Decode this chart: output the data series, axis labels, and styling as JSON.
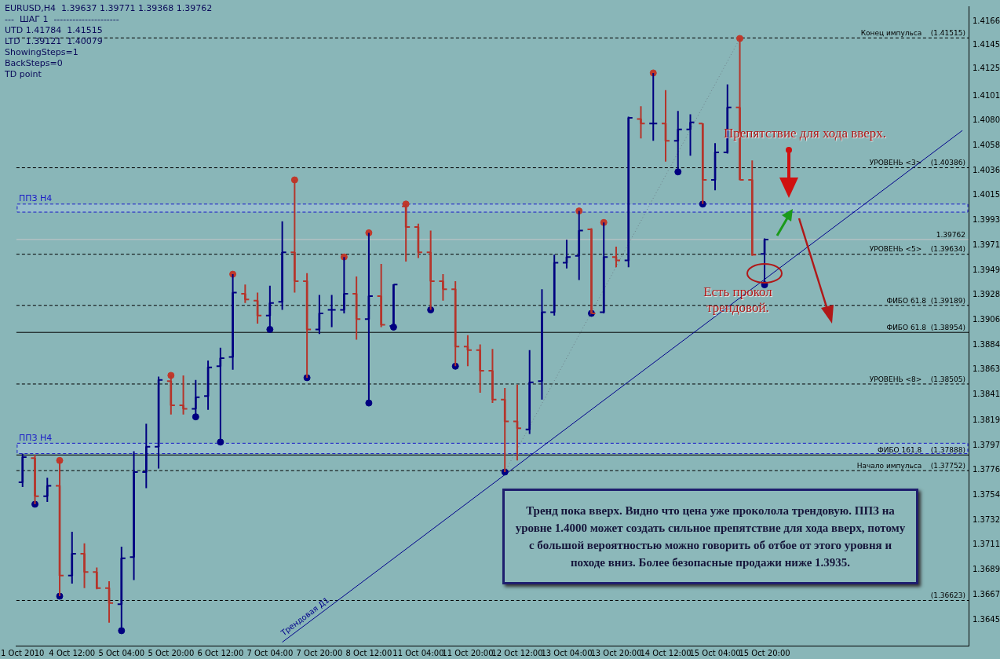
{
  "chart_data": {
    "type": "candlestick",
    "title": "EURUSD,H4  1.39637 1.39771 1.39368 1.39762",
    "categories": [
      "1 Oct 2010",
      null,
      null,
      null,
      "4 Oct 12:00",
      null,
      null,
      null,
      "5 Oct 04:00",
      null,
      null,
      null,
      "5 Oct 20:00",
      null,
      null,
      null,
      "6 Oct 12:00",
      null,
      null,
      null,
      "7 Oct 04:00",
      null,
      null,
      null,
      "7 Oct 20:00",
      null,
      null,
      null,
      "8 Oct 12:00",
      null,
      null,
      null,
      "11 Oct 04:00",
      null,
      null,
      null,
      "11 Oct 20:00",
      null,
      null,
      null,
      "12 Oct 12:00",
      null,
      null,
      null,
      "13 Oct 04:00",
      null,
      null,
      null,
      "13 Oct 20:00",
      null,
      null,
      null,
      "14 Oct 12:00",
      null,
      null,
      null,
      "15 Oct 04:00",
      null,
      null,
      null,
      "15 Oct 20:00",
      null,
      null,
      null,
      null,
      null,
      null,
      null,
      null,
      null,
      null,
      null,
      null,
      null,
      null,
      null,
      null
    ],
    "ohlc": [
      [
        1.3765,
        1.379,
        1.3761,
        1.3787
      ],
      [
        1.3786,
        1.3789,
        1.3746,
        1.3753
      ],
      [
        1.3753,
        1.3769,
        1.3748,
        1.3762
      ],
      [
        1.3762,
        1.3784,
        1.3666,
        1.3684
      ],
      [
        1.3684,
        1.3722,
        1.3677,
        1.3703
      ],
      [
        1.3703,
        1.3712,
        1.3673,
        1.3687
      ],
      [
        1.3687,
        1.3691,
        1.3672,
        1.3673
      ],
      [
        1.3673,
        1.3679,
        1.3643,
        1.366
      ],
      [
        1.3659,
        1.3709,
        1.3636,
        1.3699
      ],
      [
        1.37,
        1.3792,
        1.368,
        1.3774
      ],
      [
        1.3774,
        1.3816,
        1.376,
        1.3796
      ],
      [
        1.3796,
        1.3857,
        1.3777,
        1.3854
      ],
      [
        1.3853,
        1.3858,
        1.3824,
        1.3832
      ],
      [
        1.3832,
        1.3858,
        1.3824,
        1.3829
      ],
      [
        1.3829,
        1.3854,
        1.3822,
        1.3839
      ],
      [
        1.384,
        1.3871,
        1.3828,
        1.3865
      ],
      [
        1.3866,
        1.3882,
        1.38,
        1.3873
      ],
      [
        1.3874,
        1.3946,
        1.3863,
        1.393
      ],
      [
        1.3929,
        1.3937,
        1.3921,
        1.3924
      ],
      [
        1.3923,
        1.393,
        1.3903,
        1.391
      ],
      [
        1.391,
        1.3936,
        1.3898,
        1.3921
      ],
      [
        1.3922,
        1.3992,
        1.3915,
        1.3965
      ],
      [
        1.3965,
        1.4028,
        1.393,
        1.394
      ],
      [
        1.394,
        1.3947,
        1.3856,
        1.3898
      ],
      [
        1.3898,
        1.3928,
        1.3894,
        1.3912
      ],
      [
        1.3915,
        1.3928,
        1.39,
        1.3915
      ],
      [
        1.3915,
        1.3961,
        1.3912,
        1.3929
      ],
      [
        1.3929,
        1.3944,
        1.3889,
        1.3907
      ],
      [
        1.3907,
        1.3982,
        1.3834,
        1.3927
      ],
      [
        1.3927,
        1.3955,
        1.39,
        1.3902
      ],
      [
        1.3901,
        1.3937,
        1.39,
        1.3937
      ],
      [
        1.4005,
        1.4007,
        1.3957,
        1.3987
      ],
      [
        1.3987,
        1.399,
        1.396,
        1.3965
      ],
      [
        1.3965,
        1.3984,
        1.3915,
        1.394
      ],
      [
        1.394,
        1.3946,
        1.3923,
        1.3933
      ],
      [
        1.3933,
        1.394,
        1.3866,
        1.3883
      ],
      [
        1.3883,
        1.3893,
        1.3866,
        1.388
      ],
      [
        1.388,
        1.3885,
        1.3843,
        1.3862
      ],
      [
        1.3862,
        1.3881,
        1.3834,
        1.3837
      ],
      [
        1.3837,
        1.3847,
        1.3774,
        1.3818
      ],
      [
        1.3818,
        1.385,
        1.3784,
        1.3812
      ],
      [
        1.3811,
        1.388,
        1.3807,
        1.3852
      ],
      [
        1.3853,
        1.3933,
        1.3837,
        1.3913
      ],
      [
        1.3913,
        1.3963,
        1.391,
        1.3956
      ],
      [
        1.3956,
        1.3976,
        1.3951,
        1.3961
      ],
      [
        1.3962,
        1.4001,
        1.3941,
        1.3984
      ],
      [
        1.3985,
        1.3986,
        1.3912,
        1.3912
      ],
      [
        1.3913,
        1.3991,
        1.3912,
        1.3961
      ],
      [
        1.3961,
        1.397,
        1.3952,
        1.3958
      ],
      [
        1.3958,
        1.4083,
        1.3952,
        1.4082
      ],
      [
        1.4081,
        1.4092,
        1.4064,
        1.4077
      ],
      [
        1.4077,
        1.4121,
        1.4062,
        1.4077
      ],
      [
        1.4077,
        1.4106,
        1.4044,
        1.4062
      ],
      [
        1.4062,
        1.4088,
        1.4035,
        1.4072
      ],
      [
        1.4072,
        1.4085,
        1.4049,
        1.4078
      ],
      [
        1.4077,
        1.4077,
        1.4007,
        1.4028
      ],
      [
        1.4028,
        1.406,
        1.4019,
        1.4052
      ],
      [
        1.4052,
        1.4111,
        1.4051,
        1.4091
      ],
      [
        1.4091,
        1.4151,
        1.4028,
        1.4028
      ],
      [
        1.4028,
        1.4045,
        1.3962,
        1.3963
      ],
      [
        1.39637,
        1.39771,
        1.39368,
        1.39762
      ],
      null,
      null,
      null,
      null,
      null,
      null,
      null,
      null,
      null,
      null,
      null,
      null,
      null,
      null,
      null,
      null
    ],
    "colors": [
      "#000080",
      "#b5352b",
      "#000080",
      "#b5352b",
      "#000080",
      "#b5352b",
      "#b5352b",
      "#b5352b",
      "#000080",
      "#000080",
      "#000080",
      "#000080",
      "#b5352b",
      "#b5352b",
      "#000080",
      "#000080",
      "#000080",
      "#000080",
      "#b5352b",
      "#b5352b",
      "#000080",
      "#000080",
      "#b5352b",
      "#b5352b",
      "#000080",
      "#000080",
      "#000080",
      "#b5352b",
      "#000080",
      "#b5352b",
      "#000080",
      "#b5352b",
      "#b5352b",
      "#b5352b",
      "#b5352b",
      "#b5352b",
      "#b5352b",
      "#b5352b",
      "#b5352b",
      "#b5352b",
      "#b5352b",
      "#000080",
      "#000080",
      "#000080",
      "#000080",
      "#000080",
      "#b5352b",
      "#000080",
      "#b5352b",
      "#000080",
      "#b5352b",
      "#000080",
      "#b5352b",
      "#000080",
      "#000080",
      "#b5352b",
      "#000080",
      "#000080",
      "#b5352b",
      "#b5352b",
      "#000080",
      null,
      null,
      null,
      null,
      null,
      null,
      null,
      null,
      null,
      null,
      null,
      null,
      null,
      null,
      null,
      null
    ],
    "series": [
      {
        "type": "line",
        "name": "Трендовая Д1",
        "color": "#00008b",
        "line_style": "solid",
        "values": [
          null,
          null,
          null,
          null,
          null,
          null,
          null,
          null,
          null,
          null,
          null,
          null,
          null,
          null,
          null,
          null,
          null,
          null,
          null,
          null,
          null,
          1.3626,
          null,
          null,
          null,
          null,
          null,
          null,
          null,
          null,
          null,
          null,
          null,
          null,
          null,
          null,
          null,
          null,
          null,
          null,
          null,
          null,
          null,
          null,
          null,
          null,
          null,
          null,
          null,
          null,
          null,
          null,
          null,
          null,
          null,
          null,
          null,
          null,
          null,
          null,
          null,
          null,
          null,
          null,
          null,
          null,
          null,
          null,
          null,
          null,
          null,
          null,
          null,
          null,
          null,
          null,
          1.4071
        ]
      },
      {
        "type": "line",
        "color": "#6e7f88",
        "line_style": "dotted",
        "values": [
          null,
          null,
          null,
          null,
          null,
          null,
          null,
          null,
          null,
          null,
          null,
          null,
          null,
          null,
          null,
          null,
          null,
          null,
          null,
          null,
          null,
          null,
          null,
          null,
          null,
          null,
          null,
          null,
          null,
          null,
          null,
          null,
          null,
          null,
          null,
          null,
          null,
          null,
          null,
          1.3774,
          null,
          null,
          null,
          null,
          null,
          null,
          null,
          null,
          null,
          null,
          null,
          null,
          null,
          null,
          null,
          null,
          null,
          null,
          1.4151,
          null,
          null,
          null,
          null,
          null,
          null,
          null,
          null,
          null,
          null,
          null,
          null,
          null,
          null,
          null,
          null,
          null,
          null
        ]
      },
      {
        "type": "scatter",
        "color": "#c0392b",
        "marker": "circle",
        "values": [
          null,
          null,
          null,
          1.3784,
          null,
          null,
          null,
          null,
          null,
          null,
          null,
          null,
          1.3858,
          null,
          null,
          null,
          null,
          1.3946,
          null,
          null,
          null,
          null,
          1.4028,
          null,
          null,
          null,
          1.3961,
          null,
          1.3982,
          null,
          null,
          1.4007,
          null,
          null,
          null,
          null,
          null,
          null,
          null,
          null,
          null,
          null,
          null,
          null,
          null,
          1.4001,
          null,
          1.3991,
          null,
          null,
          null,
          1.4121,
          null,
          null,
          null,
          null,
          null,
          null,
          1.4151,
          null,
          null,
          null,
          null,
          null,
          null,
          null,
          null,
          null,
          null,
          null,
          null,
          null,
          null,
          null,
          null,
          null,
          null
        ]
      },
      {
        "type": "scatter",
        "color": "#000080",
        "marker": "circle",
        "values": [
          null,
          1.3746,
          null,
          1.3666,
          null,
          null,
          null,
          null,
          1.3636,
          null,
          null,
          null,
          null,
          null,
          1.3822,
          null,
          1.38,
          null,
          null,
          null,
          1.3898,
          null,
          null,
          1.3856,
          null,
          null,
          null,
          null,
          1.3834,
          null,
          1.39,
          null,
          null,
          1.3915,
          null,
          1.3866,
          null,
          null,
          null,
          1.3774,
          null,
          null,
          null,
          null,
          null,
          null,
          1.3912,
          null,
          null,
          null,
          null,
          null,
          null,
          1.4035,
          null,
          1.4007,
          null,
          null,
          null,
          null,
          1.39368,
          null,
          null,
          null,
          null,
          null,
          null,
          null,
          null,
          null,
          null,
          null,
          null,
          null,
          null,
          null,
          null
        ]
      }
    ],
    "ylim": [
      1.3623,
      1.4179
    ],
    "yticks": [
      1.4166,
      1.4145,
      1.4125,
      1.4101,
      {
        "value": 1.408,
        "label": "1.4080"
      },
      1.4058,
      1.4036,
      1.4015,
      1.3993,
      1.3971,
      1.3949,
      1.3928,
      1.3906,
      1.3884,
      1.3863,
      1.3841,
      1.3819,
      1.3797,
      1.3776,
      1.3754,
      1.3732,
      1.3711,
      1.3689,
      1.3667,
      1.3645
    ],
    "ref_lines": [
      {
        "axis": "y",
        "value": 1.41515,
        "label": "Конец импульса    (1.41515)",
        "color": "#000000",
        "line_style": "dashed"
      },
      {
        "axis": "y",
        "value": 1.40386,
        "label": "УРОВЕНЬ <3>    (1.40386)",
        "color": "#000000",
        "line_style": "dashed"
      },
      {
        "axis": "y",
        "value": 1.39762,
        "label": "1.39762",
        "color": "#c8c8c8",
        "line_style": "solid"
      },
      {
        "axis": "y",
        "value": 1.39634,
        "label": "УРОВЕНЬ <5>    (1.39634)",
        "color": "#000000",
        "line_style": "dashed"
      },
      {
        "axis": "y",
        "value": 1.39189,
        "label": "ФИБО 61.8  (1.39189)",
        "color": "#000000",
        "line_style": "dashed"
      },
      {
        "axis": "y",
        "value": 1.38954,
        "label": "ФИБО 61.8  (1.38954)",
        "color": "#000000",
        "line_style": "solid"
      },
      {
        "axis": "y",
        "value": 1.38505,
        "label": "УРОВЕНЬ <8>    (1.38505)",
        "color": "#000000",
        "line_style": "dashed"
      },
      {
        "axis": "y",
        "value": 1.37888,
        "label": "ФИБО 161.8    (1.37888)",
        "color": "#000000",
        "line_style": "solid"
      },
      {
        "axis": "y",
        "value": 1.37752,
        "label": "Начало импульса    (1.37752)",
        "color": "#000000",
        "line_style": "dashed"
      },
      {
        "axis": "y",
        "value": 1.36623,
        "label": "(1.36623)",
        "color": "#000000",
        "line_style": "dashed"
      }
    ],
    "bands": [
      {
        "axis": "y",
        "from": 1.4,
        "to": 1.4007,
        "label": "ППЗ H4",
        "color": "#98bfcc"
      },
      {
        "axis": "y",
        "from": 1.379,
        "to": 1.3799,
        "label": "ППЗ H4",
        "color": "#98bfcc"
      }
    ],
    "annotations": [
      "---  ШАГ 1  ---------------------",
      "UTD 1.41784  1.41515",
      "LTD  1.39121  1.40079",
      "ShowingSteps=1",
      "BackSteps=0",
      "TD point",
      "Препятствие для хода вверх.",
      "Есть прокол трендовой.",
      "Тренд пока вверх. Видно что цена уже проколола трендовую. ППЗ на уровне 1.4000 может создать сильное препятствие для хода вверх, потому с большой вероятностью можно говорить об отбое от этого уровня и походе вниз. Более безопасные продажи ниже 1.3935."
    ]
  }
}
